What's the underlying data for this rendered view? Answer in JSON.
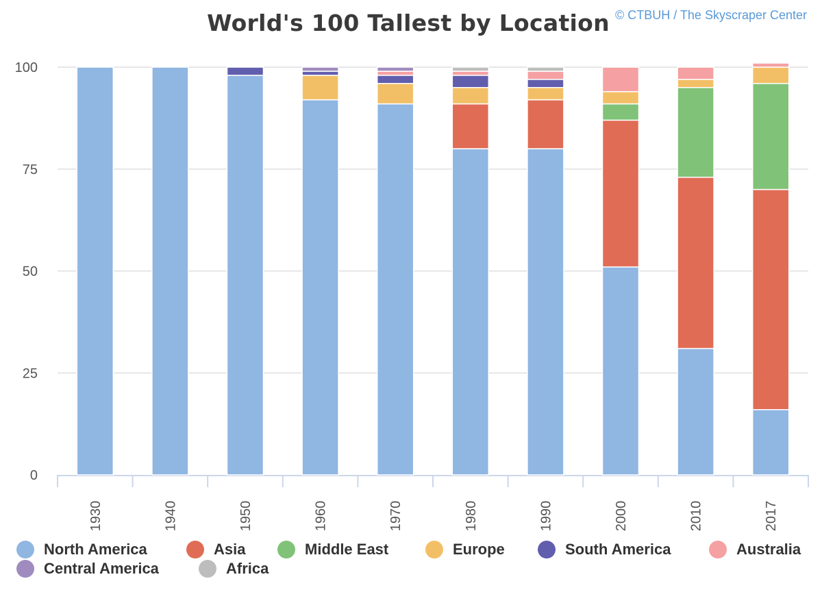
{
  "chart_data": {
    "type": "bar",
    "stacked": true,
    "title": "World's 100 Tallest by Location",
    "credit": "© CTBUH / The Skyscraper Center",
    "categories": [
      "1930",
      "1940",
      "1950",
      "1960",
      "1970",
      "1980",
      "1990",
      "2000",
      "2010",
      "2017"
    ],
    "ylim": [
      0,
      100
    ],
    "yticks": [
      0,
      25,
      50,
      75,
      100
    ],
    "grid": true,
    "legend_position": "bottom",
    "series": [
      {
        "name": "North America",
        "color": "#90b6e2",
        "values": [
          100,
          100,
          98,
          92,
          91,
          80,
          80,
          51,
          31,
          16
        ]
      },
      {
        "name": "Asia",
        "color": "#e06c55",
        "values": [
          0,
          0,
          0,
          0,
          0,
          11,
          12,
          36,
          42,
          54
        ]
      },
      {
        "name": "Middle East",
        "color": "#80c277",
        "values": [
          0,
          0,
          0,
          0,
          0,
          0,
          0,
          4,
          22,
          26
        ]
      },
      {
        "name": "Europe",
        "color": "#f3bf66",
        "values": [
          0,
          0,
          0,
          6,
          5,
          4,
          3,
          3,
          2,
          4
        ]
      },
      {
        "name": "South America",
        "color": "#625eae",
        "values": [
          0,
          0,
          2,
          1,
          2,
          3,
          2,
          0,
          0,
          0
        ]
      },
      {
        "name": "Australia",
        "color": "#f5a0a2",
        "values": [
          0,
          0,
          0,
          0,
          1,
          1,
          2,
          6,
          3,
          1
        ]
      },
      {
        "name": "Central America",
        "color": "#a08bbf",
        "values": [
          0,
          0,
          0,
          1,
          1,
          0,
          0,
          0,
          0,
          0
        ]
      },
      {
        "name": "Africa",
        "color": "#bdbdbd",
        "values": [
          0,
          0,
          0,
          0,
          0,
          1,
          1,
          0,
          0,
          0
        ]
      }
    ]
  }
}
